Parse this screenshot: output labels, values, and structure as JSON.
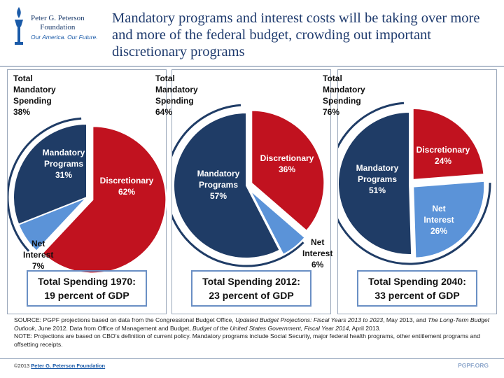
{
  "header": {
    "org_line1": "Peter G. Peterson",
    "org_line2": "Foundation",
    "tagline": "Our America. Our Future.",
    "title": "Mandatory programs and interest costs will be taking over more and more of the federal budget, crowding out important discretionary programs"
  },
  "colors": {
    "mandatory": "#1f3c66",
    "discretionary": "#c1121f",
    "net_interest": "#5b93d8"
  },
  "chart_data": [
    {
      "type": "pie",
      "title": "Total Spending 1970:",
      "subtitle": "19 percent of GDP",
      "total_mandatory": {
        "line1": "Total",
        "line2": "Mandatory",
        "line3": "Spending",
        "value": "38%"
      },
      "slices": [
        {
          "key": "discretionary",
          "name": "Discretionary",
          "value": 62,
          "pct": "62%"
        },
        {
          "key": "net_interest",
          "name": "Net Interest",
          "value": 7,
          "pct": "7%"
        },
        {
          "key": "mandatory",
          "name": "Mandatory Programs",
          "value": 31,
          "pct": "31%"
        }
      ]
    },
    {
      "type": "pie",
      "title": "Total Spending 2012:",
      "subtitle": "23 percent of GDP",
      "total_mandatory": {
        "line1": "Total",
        "line2": "Mandatory",
        "line3": "Spending",
        "value": "64%"
      },
      "slices": [
        {
          "key": "discretionary",
          "name": "Discretionary",
          "value": 36,
          "pct": "36%"
        },
        {
          "key": "net_interest",
          "name": "Net Interest",
          "value": 6,
          "pct": "6%"
        },
        {
          "key": "mandatory",
          "name": "Mandatory Programs",
          "value": 57,
          "pct": "57%"
        }
      ]
    },
    {
      "type": "pie",
      "title": "Total Spending 2040:",
      "subtitle": "33 percent of GDP",
      "total_mandatory": {
        "line1": "Total",
        "line2": "Mandatory",
        "line3": "Spending",
        "value": "76%"
      },
      "slices": [
        {
          "key": "discretionary",
          "name": "Discretionary",
          "value": 24,
          "pct": "24%"
        },
        {
          "key": "net_interest",
          "name": "Net Interest",
          "value": 26,
          "pct": "26%"
        },
        {
          "key": "mandatory",
          "name": "Mandatory Programs",
          "value": 51,
          "pct": "51%"
        }
      ]
    }
  ],
  "labels": {
    "mandatory_l1": "Mandatory",
    "mandatory_l2": "Programs",
    "discretionary": "Discretionary",
    "net_l1": "Net",
    "net_l2": "Interest"
  },
  "source": {
    "p1": "SOURCE: PGPF projections based on data from the Congressional Budget Office, ",
    "p1_italic": "Updated Budget Projections: Fiscal Years 2013 to 2023",
    "p2": ", May 2013, and ",
    "p2_italic": "The Long-Term Budget Outlook",
    "p3": ", June 2012. Data from Office of Management and Budget, ",
    "p3_italic": "Budget of the United States Government, Fiscal Year 2014",
    "p4": ", April 2013.",
    "note": "NOTE:  Projections are based on CBO’s definition of current policy. Mandatory programs include Social Security, major federal health programs, other entitlement programs and offsetting receipts."
  },
  "footer": {
    "copyright": "©2013 ",
    "copyright_link": "Peter G. Peterson Foundation",
    "site": "PGPF.ORG"
  }
}
